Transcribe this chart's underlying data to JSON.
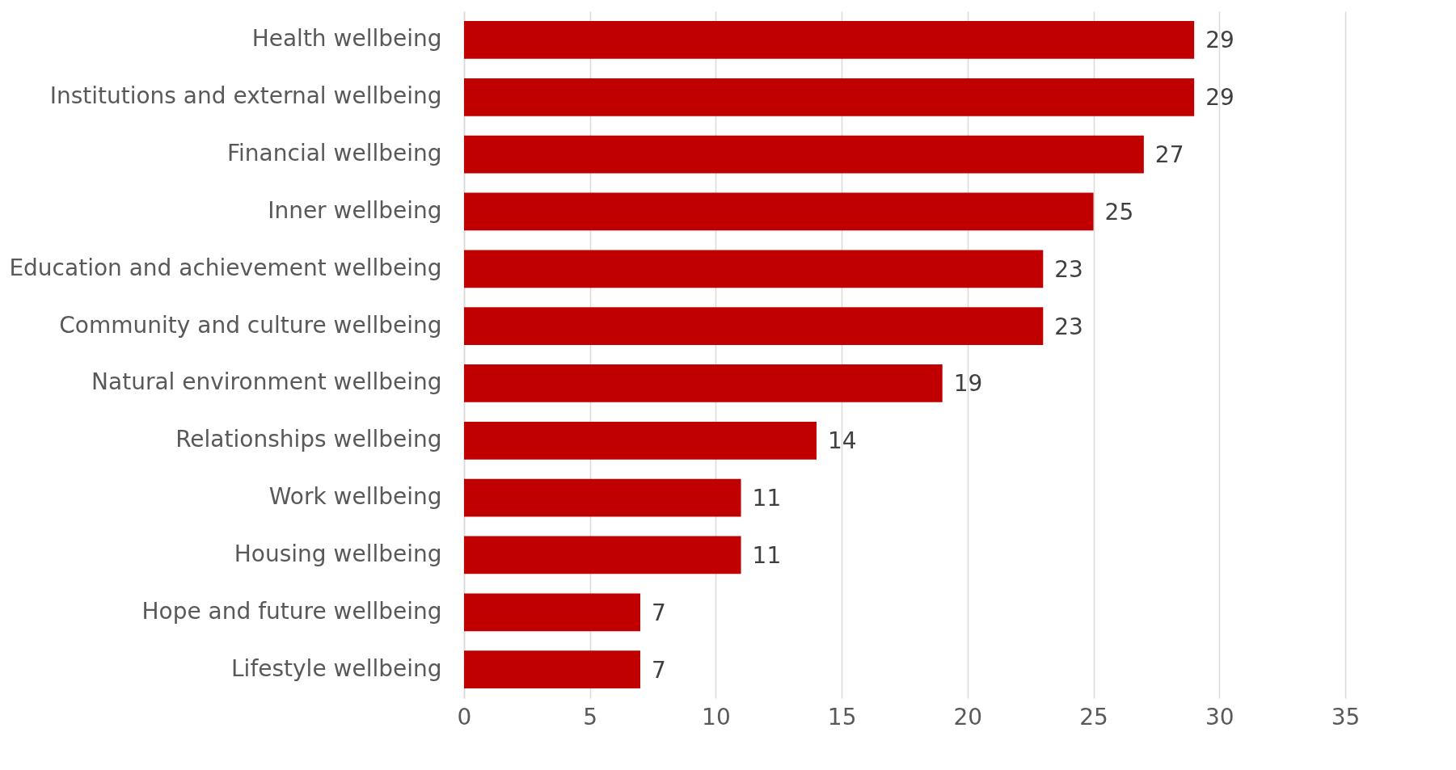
{
  "chart_data": {
    "type": "bar",
    "orientation": "horizontal",
    "categories": [
      "Health wellbeing",
      "Institutions and external wellbeing",
      "Financial wellbeing",
      "Inner wellbeing",
      "Education and achievement wellbeing",
      "Community and culture wellbeing",
      "Natural environment wellbeing",
      "Relationships wellbeing",
      "Work wellbeing",
      "Housing wellbeing",
      "Hope and future wellbeing",
      "Lifestyle wellbeing"
    ],
    "values": [
      29,
      29,
      27,
      25,
      23,
      23,
      19,
      14,
      11,
      11,
      7,
      7
    ],
    "color": "#c00000",
    "xlim": [
      0,
      35
    ],
    "xticks": [
      0,
      5,
      10,
      15,
      20,
      25,
      30,
      35
    ],
    "grid": "x",
    "data_labels": true
  }
}
